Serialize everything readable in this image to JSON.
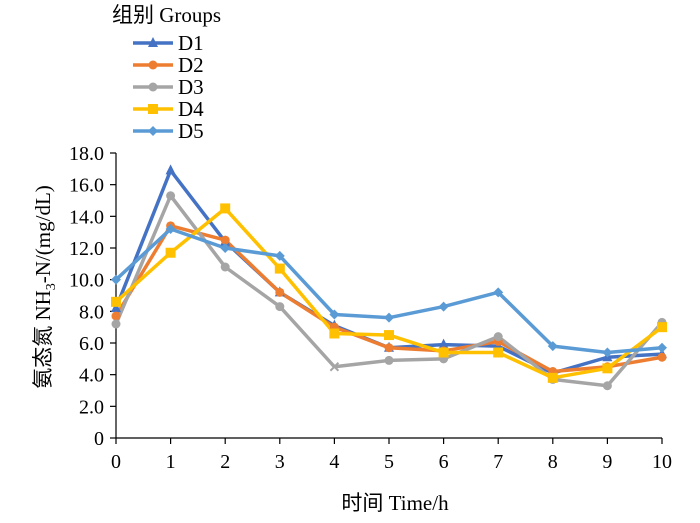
{
  "chart_data": {
    "type": "line",
    "legend_title": "组别 Groups",
    "legend_position": "top-left",
    "xlabel": "时间  Time/h",
    "ylabel_zh": "氨态氮  ",
    "ylabel_prefix": "NH",
    "ylabel_sub": "3",
    "ylabel_suffix": "-N/(mg/dL)",
    "x": [
      0,
      1,
      2,
      3,
      4,
      5,
      6,
      7,
      8,
      9,
      10
    ],
    "xticks": [
      "0",
      "1",
      "2",
      "3",
      "4",
      "5",
      "6",
      "7",
      "8",
      "9",
      "10"
    ],
    "yticks": [
      "0",
      "2.0",
      "4.0",
      "6.0",
      "8.0",
      "10.0",
      "12.0",
      "14.0",
      "16.0",
      "18.0"
    ],
    "ylim": [
      0,
      18
    ],
    "grid": false,
    "series": [
      {
        "name": "D1",
        "color": "#4472C4",
        "marker": "triangle",
        "values": [
          8.2,
          16.9,
          12.4,
          9.2,
          7.1,
          5.7,
          5.9,
          5.8,
          4.1,
          5.1,
          5.3
        ]
      },
      {
        "name": "D2",
        "color": "#ED7D31",
        "marker": "circle",
        "values": [
          7.7,
          13.4,
          12.5,
          9.2,
          7.0,
          5.7,
          5.5,
          6.1,
          4.2,
          4.5,
          5.1
        ]
      },
      {
        "name": "D3",
        "color": "#A5A5A5",
        "marker": "circle",
        "values": [
          7.2,
          15.3,
          10.8,
          8.3,
          4.5,
          4.9,
          5.0,
          6.4,
          3.7,
          3.3,
          7.3
        ]
      },
      {
        "name": "D4",
        "color": "#FFC000",
        "marker": "square",
        "values": [
          8.6,
          11.7,
          14.5,
          10.7,
          6.6,
          6.5,
          5.4,
          5.4,
          3.8,
          4.4,
          7.0
        ]
      },
      {
        "name": "D5",
        "color": "#5B9BD5",
        "marker": "diamond",
        "values": [
          10.0,
          13.2,
          12.0,
          11.5,
          7.8,
          7.6,
          8.3,
          9.2,
          5.8,
          5.4,
          5.7
        ]
      }
    ],
    "extra_marks": [
      {
        "series": "D3",
        "x": 4,
        "y": 4.5,
        "marker": "x"
      }
    ]
  }
}
